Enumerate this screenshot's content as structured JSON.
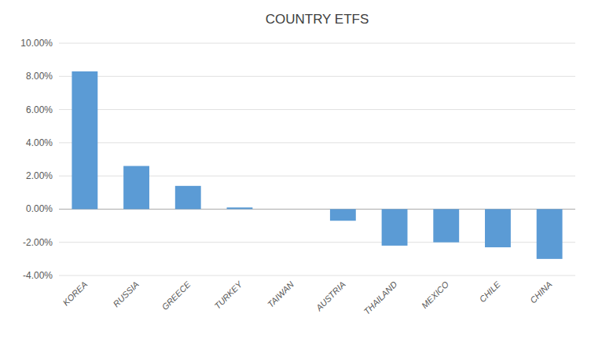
{
  "chart_data": {
    "type": "bar",
    "title": "COUNTRY ETFS",
    "categories": [
      "KOREA",
      "RUSSIA",
      "GREECE",
      "TURKEY",
      "TAIWAN",
      "AUSTRIA",
      "THAILAND",
      "MEXICO",
      "CHILE",
      "CHINA"
    ],
    "values": [
      0.083,
      0.026,
      0.014,
      0.001,
      0.0,
      -0.007,
      -0.022,
      -0.02,
      -0.023,
      -0.03
    ],
    "color": "#5B9BD5",
    "ylim": [
      -0.04,
      0.1
    ],
    "yticks": [
      {
        "value": -0.04,
        "label": "-4.00%"
      },
      {
        "value": -0.02,
        "label": "-2.00%"
      },
      {
        "value": 0.0,
        "label": "0.00%"
      },
      {
        "value": 0.02,
        "label": "2.00%"
      },
      {
        "value": 0.04,
        "label": "4.00%"
      },
      {
        "value": 0.06,
        "label": "6.00%"
      },
      {
        "value": 0.08,
        "label": "8.00%"
      },
      {
        "value": 0.1,
        "label": "10.00%"
      }
    ],
    "grid": true
  }
}
